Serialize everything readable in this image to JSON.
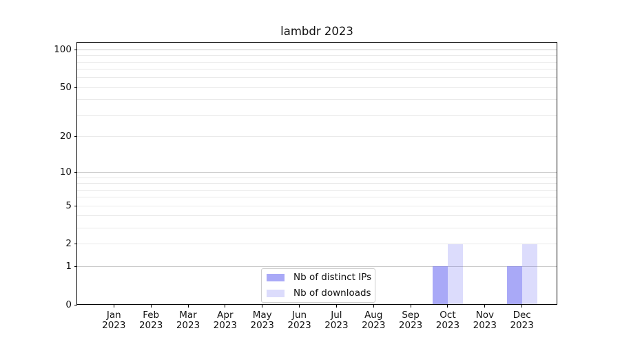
{
  "chart_data": {
    "type": "bar",
    "title": "lambdr 2023",
    "categories": [
      "Jan",
      "Feb",
      "Mar",
      "Apr",
      "May",
      "Jun",
      "Jul",
      "Aug",
      "Sep",
      "Oct",
      "Nov",
      "Dec"
    ],
    "x_year_label": "2023",
    "series": [
      {
        "name": "Nb of distinct IPs",
        "color": "rgba(102,102,240,0.56)",
        "values": [
          0,
          0,
          0,
          0,
          0,
          0,
          0,
          0,
          0,
          1,
          0,
          1
        ]
      },
      {
        "name": "Nb of downloads",
        "color": "rgba(102,102,240,0.23)",
        "values": [
          0,
          0,
          0,
          0,
          0,
          0,
          0,
          0,
          0,
          2,
          0,
          2
        ]
      }
    ],
    "y_axis": {
      "scale": "log10(1+y)",
      "labeled_ticks": [
        0,
        1,
        2,
        5,
        10,
        20,
        50,
        100
      ],
      "major_grid_ticks": [
        1,
        10,
        100
      ],
      "minor_grid_ticks": [
        2,
        3,
        4,
        5,
        6,
        7,
        8,
        9,
        20,
        30,
        40,
        50,
        60,
        70,
        80,
        90
      ],
      "ylim": [
        0,
        113
      ]
    },
    "legend": {
      "position": "lower center"
    },
    "grid": true,
    "colors": {
      "grid_major": "#c9c9c9",
      "grid_minor": "#e9e9e9",
      "spine": "#000000",
      "text": "#111111",
      "legend_border": "#cccccc",
      "background": "#ffffff"
    }
  }
}
